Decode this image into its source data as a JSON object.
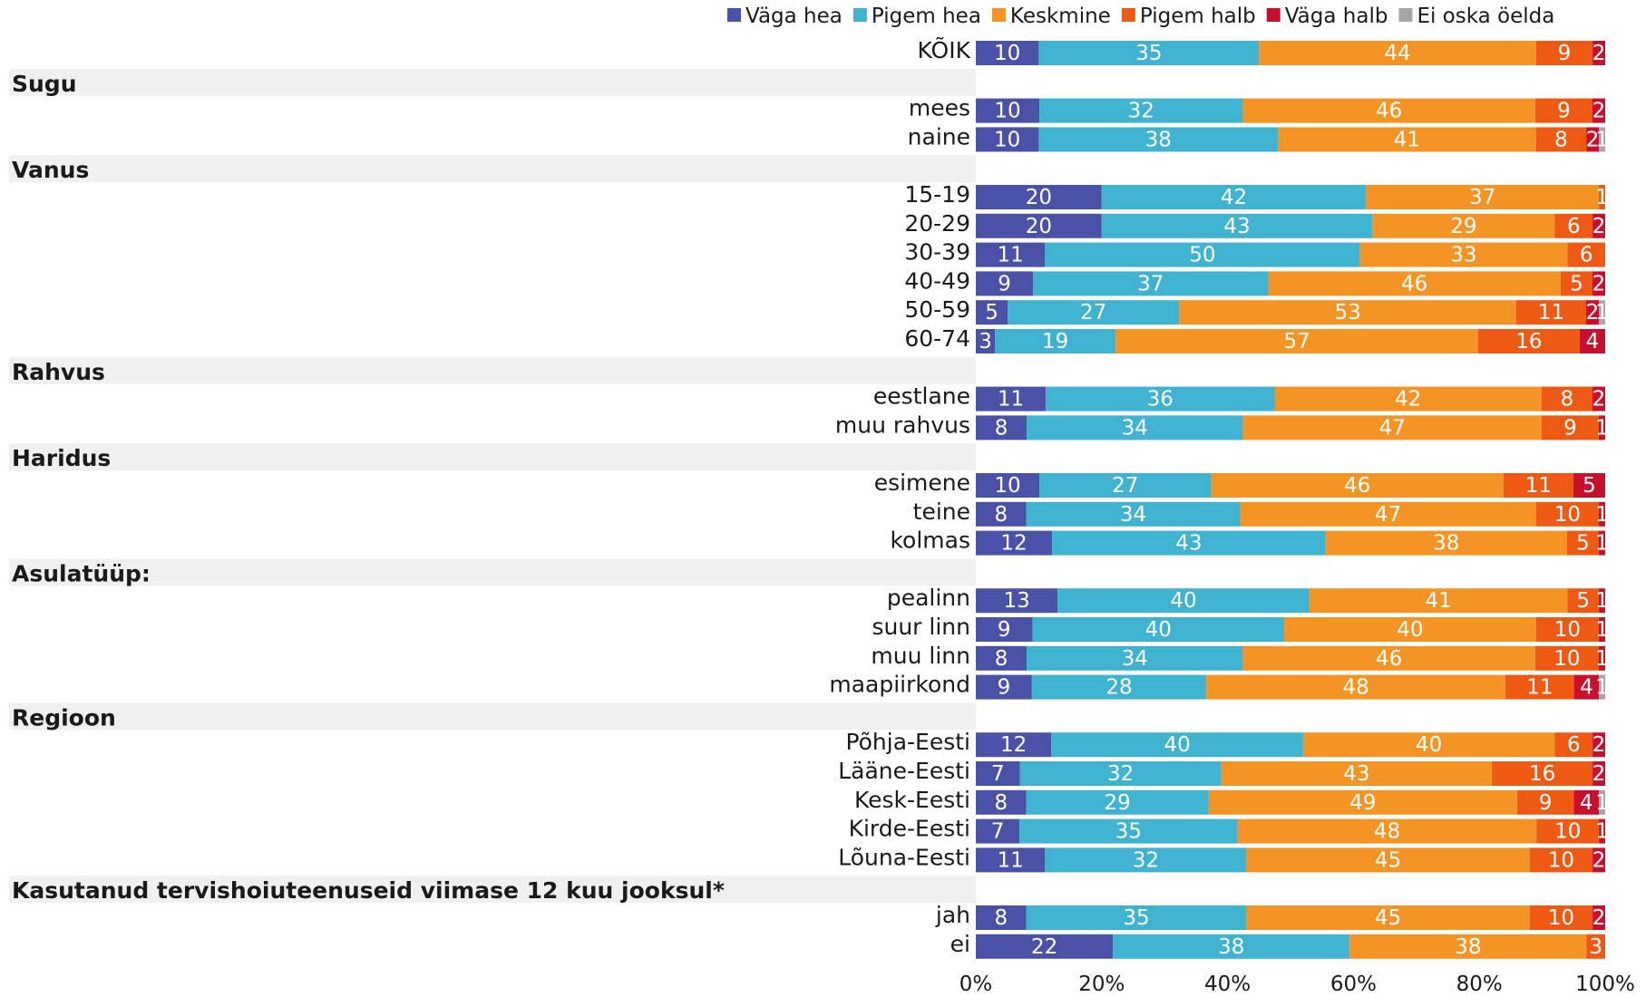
{
  "chart_data": {
    "type": "bar",
    "orientation": "horizontal",
    "stacked": true,
    "legend_position": "top-right",
    "grid": false,
    "xlim": [
      0,
      100
    ],
    "x_ticks": [
      "0%",
      "20%",
      "40%",
      "60%",
      "80%",
      "100%"
    ],
    "series": [
      {
        "name": "Väga hea",
        "color": "#4a52a8"
      },
      {
        "name": "Pigem hea",
        "color": "#3fb3d0"
      },
      {
        "name": "Keskmine",
        "color": "#f39425"
      },
      {
        "name": "Pigem halb",
        "color": "#ee5a13"
      },
      {
        "name": "Väga halb",
        "color": "#c8102e"
      },
      {
        "name": "Ei oska öelda",
        "color": "#a6a6a6"
      }
    ],
    "rows": [
      {
        "kind": "bar",
        "label": "KÕIK",
        "values": [
          10,
          35,
          44,
          9,
          2,
          0
        ]
      },
      {
        "kind": "group",
        "label": "Sugu"
      },
      {
        "kind": "bar",
        "label": "mees",
        "values": [
          10,
          32,
          46,
          9,
          2,
          0
        ]
      },
      {
        "kind": "bar",
        "label": "naine",
        "values": [
          10,
          38,
          41,
          8,
          2,
          1
        ]
      },
      {
        "kind": "group",
        "label": "Vanus"
      },
      {
        "kind": "bar",
        "label": "15-19",
        "values": [
          20,
          42,
          37,
          1,
          0,
          0
        ]
      },
      {
        "kind": "bar",
        "label": "20-29",
        "values": [
          20,
          43,
          29,
          6,
          2,
          0
        ]
      },
      {
        "kind": "bar",
        "label": "30-39",
        "values": [
          11,
          50,
          33,
          6,
          0,
          0
        ]
      },
      {
        "kind": "bar",
        "label": "40-49",
        "values": [
          9,
          37,
          46,
          5,
          2,
          0
        ]
      },
      {
        "kind": "bar",
        "label": "50-59",
        "values": [
          5,
          27,
          53,
          11,
          2,
          1
        ]
      },
      {
        "kind": "bar",
        "label": "60-74",
        "values": [
          3,
          19,
          57,
          16,
          4,
          0
        ]
      },
      {
        "kind": "group",
        "label": "Rahvus"
      },
      {
        "kind": "bar",
        "label": "eestlane",
        "values": [
          11,
          36,
          42,
          8,
          2,
          0
        ]
      },
      {
        "kind": "bar",
        "label": "muu rahvus",
        "values": [
          8,
          34,
          47,
          9,
          1,
          0
        ]
      },
      {
        "kind": "group",
        "label": "Haridus"
      },
      {
        "kind": "bar",
        "label": "esimene",
        "values": [
          10,
          27,
          46,
          11,
          5,
          0
        ]
      },
      {
        "kind": "bar",
        "label": "teine",
        "values": [
          8,
          34,
          47,
          10,
          1,
          0
        ]
      },
      {
        "kind": "bar",
        "label": "kolmas",
        "values": [
          12,
          43,
          38,
          5,
          1,
          0
        ]
      },
      {
        "kind": "group",
        "label": "Asulatüüp:"
      },
      {
        "kind": "bar",
        "label": "pealinn",
        "values": [
          13,
          40,
          41,
          5,
          1,
          0
        ]
      },
      {
        "kind": "bar",
        "label": "suur linn",
        "values": [
          9,
          40,
          40,
          10,
          1,
          0
        ]
      },
      {
        "kind": "bar",
        "label": "muu linn",
        "values": [
          8,
          34,
          46,
          10,
          1,
          0
        ]
      },
      {
        "kind": "bar",
        "label": "maapiirkond",
        "values": [
          9,
          28,
          48,
          11,
          4,
          1
        ]
      },
      {
        "kind": "group",
        "label": "Regioon"
      },
      {
        "kind": "bar",
        "label": "Põhja-Eesti",
        "values": [
          12,
          40,
          40,
          6,
          2,
          0
        ]
      },
      {
        "kind": "bar",
        "label": "Lääne-Eesti",
        "values": [
          7,
          32,
          43,
          16,
          2,
          0
        ]
      },
      {
        "kind": "bar",
        "label": "Kesk-Eesti",
        "values": [
          8,
          29,
          49,
          9,
          4,
          1
        ]
      },
      {
        "kind": "bar",
        "label": "Kirde-Eesti",
        "values": [
          7,
          35,
          48,
          10,
          1,
          0
        ]
      },
      {
        "kind": "bar",
        "label": "Lõuna-Eesti",
        "values": [
          11,
          32,
          45,
          10,
          2,
          0
        ]
      },
      {
        "kind": "group",
        "label": "Kasutanud tervishoiuteenuseid viimase 12 kuu jooksul*"
      },
      {
        "kind": "bar",
        "label": "jah",
        "values": [
          8,
          35,
          45,
          10,
          2,
          0
        ]
      },
      {
        "kind": "bar",
        "label": "ei",
        "values": [
          22,
          38,
          38,
          3,
          0,
          0
        ]
      }
    ]
  }
}
